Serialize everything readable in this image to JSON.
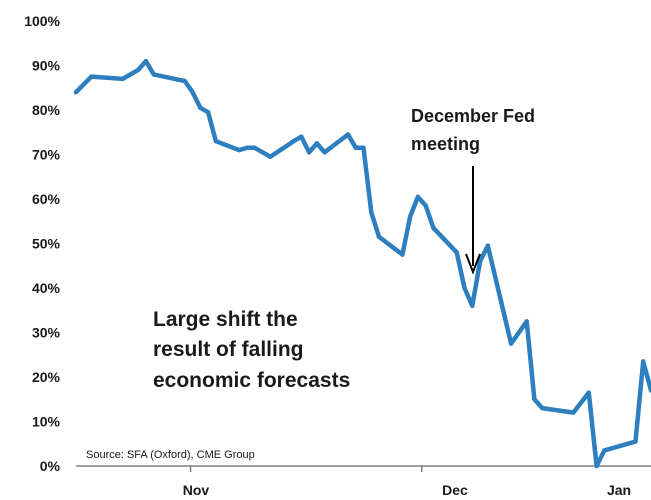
{
  "chart_data": {
    "type": "line",
    "title": "",
    "xlabel": "",
    "ylabel": "",
    "ylim": [
      0,
      100
    ],
    "y_ticks": [
      "0%",
      "10%",
      "20%",
      "30%",
      "40%",
      "50%",
      "60%",
      "70%",
      "80%",
      "90%",
      "100%"
    ],
    "x_tick_labels": [
      "Nov",
      "Dec",
      "Jan"
    ],
    "grid": false,
    "series": [
      {
        "color": "#2e7fbf",
        "points": [
          {
            "x": "Oct 17",
            "y": 84
          },
          {
            "x": "Oct 19",
            "y": 87.5
          },
          {
            "x": "Oct 23",
            "y": 87
          },
          {
            "x": "Oct 25",
            "y": 89
          },
          {
            "x": "Oct 26",
            "y": 91
          },
          {
            "x": "Oct 27",
            "y": 88
          },
          {
            "x": "Oct 31",
            "y": 86.5
          },
          {
            "x": "Nov 1",
            "y": 84
          },
          {
            "x": "Nov 2",
            "y": 80.5
          },
          {
            "x": "Nov 3",
            "y": 79.5
          },
          {
            "x": "Nov 4",
            "y": 73
          },
          {
            "x": "Nov 7",
            "y": 71
          },
          {
            "x": "Nov 8",
            "y": 71.5
          },
          {
            "x": "Nov 9",
            "y": 71.5
          },
          {
            "x": "Nov 11",
            "y": 69.5
          },
          {
            "x": "Nov 14",
            "y": 73
          },
          {
            "x": "Nov 15",
            "y": 74
          },
          {
            "x": "Nov 16",
            "y": 70.5
          },
          {
            "x": "Nov 17",
            "y": 72.5
          },
          {
            "x": "Nov 18",
            "y": 70.5
          },
          {
            "x": "Nov 21",
            "y": 74.5
          },
          {
            "x": "Nov 22",
            "y": 71.5
          },
          {
            "x": "Nov 23",
            "y": 71.5
          },
          {
            "x": "Nov 24",
            "y": 57
          },
          {
            "x": "Nov 25",
            "y": 51.5
          },
          {
            "x": "Nov 28",
            "y": 47.5
          },
          {
            "x": "Nov 29",
            "y": 56
          },
          {
            "x": "Nov 30",
            "y": 60.5
          },
          {
            "x": "Dec 1",
            "y": 58.5
          },
          {
            "x": "Dec 2",
            "y": 53.5
          },
          {
            "x": "Dec 5",
            "y": 48
          },
          {
            "x": "Dec 6",
            "y": 40
          },
          {
            "x": "Dec 7",
            "y": 36
          },
          {
            "x": "Dec 8",
            "y": 46
          },
          {
            "x": "Dec 9",
            "y": 49.5
          },
          {
            "x": "Dec 12",
            "y": 27.5
          },
          {
            "x": "Dec 14",
            "y": 32.5
          },
          {
            "x": "Dec 15",
            "y": 15
          },
          {
            "x": "Dec 16",
            "y": 13
          },
          {
            "x": "Dec 20",
            "y": 12
          },
          {
            "x": "Dec 22",
            "y": 16.5
          },
          {
            "x": "Dec 23",
            "y": 0
          },
          {
            "x": "Dec 24",
            "y": 3.5
          },
          {
            "x": "Dec 28",
            "y": 5.5
          },
          {
            "x": "Dec 29",
            "y": 23.5
          },
          {
            "x": "Dec 30",
            "y": 17
          }
        ]
      }
    ],
    "annotations": [
      {
        "lines": [
          "December Fed",
          "meeting"
        ],
        "points_to": "Dec 7"
      },
      {
        "lines": [
          "Large shift the",
          "result of falling",
          "economic forecasts"
        ]
      }
    ],
    "source": "Source: SFA (Oxford), CME Group"
  }
}
